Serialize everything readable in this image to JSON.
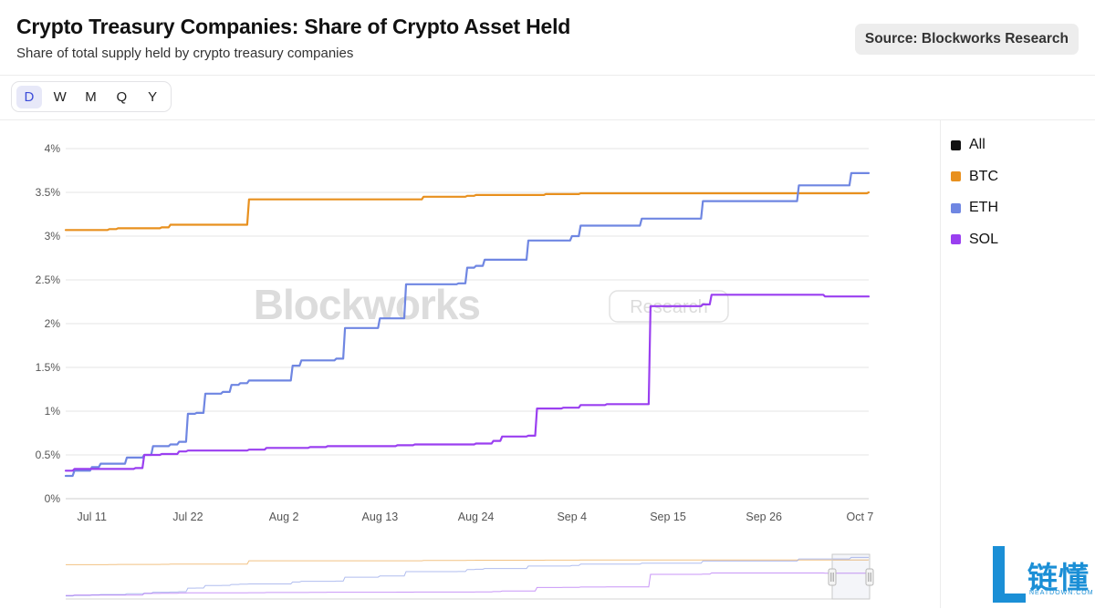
{
  "header": {
    "title": "Crypto Treasury Companies: Share of Crypto Asset Held",
    "subtitle": "Share of total supply held by crypto treasury companies",
    "source": "Source: Blockworks Research"
  },
  "timeframes": [
    "D",
    "W",
    "M",
    "Q",
    "Y"
  ],
  "active_timeframe": "D",
  "watermark": {
    "brand": "Blockworks",
    "tag": "Research"
  },
  "logo": {
    "cn": "链懂",
    "en": "NEATDOWN.COM"
  },
  "colors": {
    "BTC": "#e8901e",
    "ETH": "#6f86e2",
    "SOL": "#9a3ff0",
    "All": "#111111"
  },
  "legend": [
    {
      "label": "All",
      "color": "#111111"
    },
    {
      "label": "BTC",
      "color": "#e8901e"
    },
    {
      "label": "ETH",
      "color": "#6f86e2"
    },
    {
      "label": "SOL",
      "color": "#9a3ff0"
    }
  ],
  "chart_data": {
    "type": "line",
    "ylim": [
      0,
      4
    ],
    "yticks": [
      0,
      0.5,
      1,
      1.5,
      2,
      2.5,
      3,
      3.5,
      4
    ],
    "ytick_labels": [
      "0%",
      "0.5%",
      "1%",
      "1.5%",
      "2%",
      "2.5%",
      "3%",
      "3.5%",
      "4%"
    ],
    "xlim": [
      "2025-07-08",
      "2025-10-08"
    ],
    "xticks": [
      "2025-07-11",
      "2025-07-22",
      "2025-08-02",
      "2025-08-13",
      "2025-08-24",
      "2025-09-04",
      "2025-09-15",
      "2025-09-26",
      "2025-10-07"
    ],
    "xtick_labels": [
      "Jul 11",
      "Jul 22",
      "Aug 2",
      "Aug 13",
      "Aug 24",
      "Sep 4",
      "Sep 15",
      "Sep 26",
      "Oct 7"
    ],
    "grid": true,
    "legend_position": "right",
    "series": [
      {
        "name": "BTC",
        "points": [
          [
            "2025-07-08",
            3.07
          ],
          [
            "2025-07-13",
            3.08
          ],
          [
            "2025-07-14",
            3.09
          ],
          [
            "2025-07-19",
            3.1
          ],
          [
            "2025-07-20",
            3.13
          ],
          [
            "2025-07-28",
            3.13
          ],
          [
            "2025-07-29",
            3.42
          ],
          [
            "2025-08-17",
            3.42
          ],
          [
            "2025-08-18",
            3.45
          ],
          [
            "2025-08-23",
            3.46
          ],
          [
            "2025-08-24",
            3.47
          ],
          [
            "2025-09-01",
            3.48
          ],
          [
            "2025-09-05",
            3.49
          ],
          [
            "2025-10-08",
            3.5
          ]
        ]
      },
      {
        "name": "ETH",
        "points": [
          [
            "2025-07-08",
            0.26
          ],
          [
            "2025-07-09",
            0.32
          ],
          [
            "2025-07-11",
            0.36
          ],
          [
            "2025-07-12",
            0.4
          ],
          [
            "2025-07-15",
            0.47
          ],
          [
            "2025-07-17",
            0.5
          ],
          [
            "2025-07-18",
            0.6
          ],
          [
            "2025-07-20",
            0.62
          ],
          [
            "2025-07-21",
            0.65
          ],
          [
            "2025-07-22",
            0.97
          ],
          [
            "2025-07-23",
            0.98
          ],
          [
            "2025-07-24",
            1.2
          ],
          [
            "2025-07-26",
            1.22
          ],
          [
            "2025-07-27",
            1.3
          ],
          [
            "2025-07-28",
            1.32
          ],
          [
            "2025-07-29",
            1.35
          ],
          [
            "2025-08-02",
            1.35
          ],
          [
            "2025-08-03",
            1.52
          ],
          [
            "2025-08-04",
            1.58
          ],
          [
            "2025-08-08",
            1.6
          ],
          [
            "2025-08-09",
            1.95
          ],
          [
            "2025-08-12",
            1.95
          ],
          [
            "2025-08-13",
            2.06
          ],
          [
            "2025-08-15",
            2.06
          ],
          [
            "2025-08-16",
            2.45
          ],
          [
            "2025-08-22",
            2.46
          ],
          [
            "2025-08-23",
            2.64
          ],
          [
            "2025-08-24",
            2.66
          ],
          [
            "2025-08-25",
            2.73
          ],
          [
            "2025-08-29",
            2.73
          ],
          [
            "2025-08-30",
            2.95
          ],
          [
            "2025-09-03",
            2.95
          ],
          [
            "2025-09-04",
            3.0
          ],
          [
            "2025-09-05",
            3.12
          ],
          [
            "2025-09-11",
            3.12
          ],
          [
            "2025-09-12",
            3.2
          ],
          [
            "2025-09-18",
            3.2
          ],
          [
            "2025-09-19",
            3.4
          ],
          [
            "2025-09-29",
            3.4
          ],
          [
            "2025-09-30",
            3.58
          ],
          [
            "2025-10-05",
            3.58
          ],
          [
            "2025-10-06",
            3.72
          ],
          [
            "2025-10-08",
            3.72
          ]
        ]
      },
      {
        "name": "SOL",
        "points": [
          [
            "2025-07-08",
            0.32
          ],
          [
            "2025-07-09",
            0.34
          ],
          [
            "2025-07-16",
            0.35
          ],
          [
            "2025-07-17",
            0.5
          ],
          [
            "2025-07-19",
            0.51
          ],
          [
            "2025-07-21",
            0.54
          ],
          [
            "2025-07-22",
            0.55
          ],
          [
            "2025-07-29",
            0.56
          ],
          [
            "2025-07-31",
            0.58
          ],
          [
            "2025-08-05",
            0.59
          ],
          [
            "2025-08-07",
            0.6
          ],
          [
            "2025-08-15",
            0.61
          ],
          [
            "2025-08-17",
            0.62
          ],
          [
            "2025-08-24",
            0.63
          ],
          [
            "2025-08-26",
            0.66
          ],
          [
            "2025-08-27",
            0.71
          ],
          [
            "2025-08-30",
            0.72
          ],
          [
            "2025-08-31",
            1.03
          ],
          [
            "2025-09-03",
            1.04
          ],
          [
            "2025-09-05",
            1.07
          ],
          [
            "2025-09-08",
            1.08
          ],
          [
            "2025-09-12",
            1.08
          ],
          [
            "2025-09-13",
            2.2
          ],
          [
            "2025-09-19",
            2.22
          ],
          [
            "2025-09-20",
            2.33
          ],
          [
            "2025-10-02",
            2.33
          ],
          [
            "2025-10-03",
            2.31
          ],
          [
            "2025-10-08",
            2.31
          ]
        ]
      }
    ]
  }
}
